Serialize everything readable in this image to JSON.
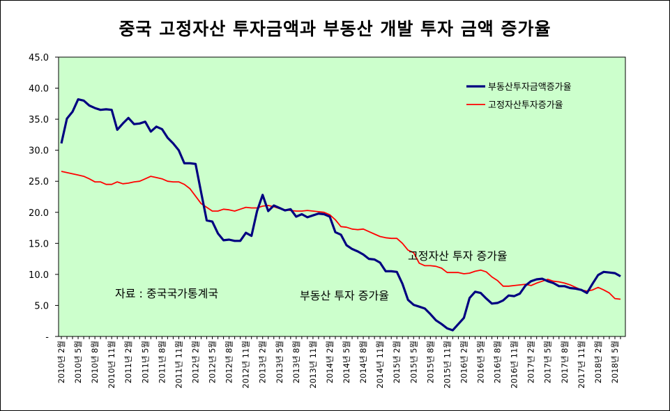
{
  "chart_data": {
    "type": "line",
    "title": "중국 고정자산 투자금액과 부동산 개발 투자 금액 증가율",
    "xlabel": "",
    "ylabel": "",
    "ylim": [
      0,
      45
    ],
    "y_ticks": [
      "45.0",
      "40.0",
      "35.0",
      "30.0",
      "25.0",
      "20.0",
      "15.0",
      "10.0",
      "5.0",
      "-"
    ],
    "x_tick_labels": [
      "2010년 2월",
      "2010년 5월",
      "2010년 8월",
      "2010년 11월",
      "2011년 2월",
      "2011년 5월",
      "2011년 8월",
      "2011년 11월",
      "2012년 2월",
      "2012년 5월",
      "2012년 8월",
      "2012년 11월",
      "2013년 2월",
      "2013년 5월",
      "2013년 8월",
      "2013년 11월",
      "2014년 2월",
      "2014년 5월",
      "2014년 8월",
      "2014년 11월",
      "2015년 2월",
      "2015년 5월",
      "2015년 8월",
      "2015년 11월",
      "2016년 2월",
      "2016년 5월",
      "2016년 8월",
      "2016년 11월",
      "2017년 2월",
      "2017년 5월",
      "2017년 8월",
      "2017년 11월",
      "2018년 2월",
      "2018년 5월"
    ],
    "background": "#ccffcc",
    "legend_position": "top-right",
    "series": [
      {
        "name": "부동산투자금액증가율",
        "color": "#000080",
        "values": [
          31.1,
          35.1,
          36.2,
          38.2,
          38.0,
          37.2,
          36.8,
          36.5,
          36.6,
          36.5,
          33.3,
          34.3,
          35.2,
          34.2,
          34.3,
          34.6,
          33.0,
          33.8,
          33.4,
          32.0,
          31.1,
          30.0,
          27.9,
          27.9,
          27.8,
          23.2,
          18.7,
          18.5,
          16.6,
          15.5,
          15.6,
          15.4,
          15.4,
          16.7,
          16.2,
          20.2,
          22.8,
          20.2,
          21.1,
          20.7,
          20.3,
          20.5,
          19.3,
          19.7,
          19.2,
          19.5,
          19.8,
          19.7,
          19.3,
          16.8,
          16.4,
          14.7,
          14.1,
          13.7,
          13.2,
          12.5,
          12.4,
          11.9,
          10.5,
          10.5,
          10.4,
          8.5,
          5.9,
          5.1,
          4.8,
          4.5,
          3.6,
          2.6,
          2.0,
          1.3,
          1.0,
          2.0,
          3.0,
          6.2,
          7.2,
          7.0,
          6.1,
          5.3,
          5.4,
          5.8,
          6.6,
          6.5,
          6.9,
          8.2,
          8.9,
          9.2,
          9.3,
          8.9,
          8.6,
          8.1,
          8.1,
          7.8,
          7.7,
          7.5,
          7.0,
          8.5,
          9.9,
          10.4,
          10.3,
          10.2,
          9.7
        ]
      },
      {
        "name": "고정자산투자증가율",
        "color": "#ff0000",
        "values": [
          26.6,
          26.4,
          26.2,
          26.0,
          25.8,
          25.4,
          24.9,
          24.9,
          24.5,
          24.5,
          24.9,
          24.6,
          24.7,
          24.9,
          25.0,
          25.4,
          25.8,
          25.6,
          25.4,
          25.0,
          24.9,
          24.9,
          24.5,
          23.8,
          22.6,
          21.4,
          20.8,
          20.2,
          20.2,
          20.5,
          20.4,
          20.2,
          20.5,
          20.8,
          20.7,
          20.7,
          21.0,
          21.1,
          20.9,
          20.6,
          20.4,
          20.3,
          20.2,
          20.2,
          20.3,
          20.2,
          20.1,
          20.0,
          19.6,
          18.8,
          17.7,
          17.6,
          17.3,
          17.2,
          17.3,
          16.9,
          16.5,
          16.1,
          15.9,
          15.8,
          15.8,
          15.0,
          13.9,
          13.5,
          11.8,
          11.4,
          11.4,
          11.3,
          11.0,
          10.3,
          10.3,
          10.3,
          10.1,
          10.2,
          10.5,
          10.7,
          10.4,
          9.6,
          9.0,
          8.1,
          8.1,
          8.2,
          8.3,
          8.4,
          8.2,
          8.6,
          8.9,
          9.2,
          8.9,
          8.8,
          8.6,
          8.3,
          7.9,
          7.5,
          7.3,
          7.5,
          7.9,
          7.5,
          7.0,
          6.1,
          6.0
        ]
      }
    ],
    "annotations": {
      "source": "자료 : 중국국가통계국",
      "fixed_asset": "고정자산 투자 증가율",
      "real_estate": "부동산 투자 증가율"
    }
  }
}
